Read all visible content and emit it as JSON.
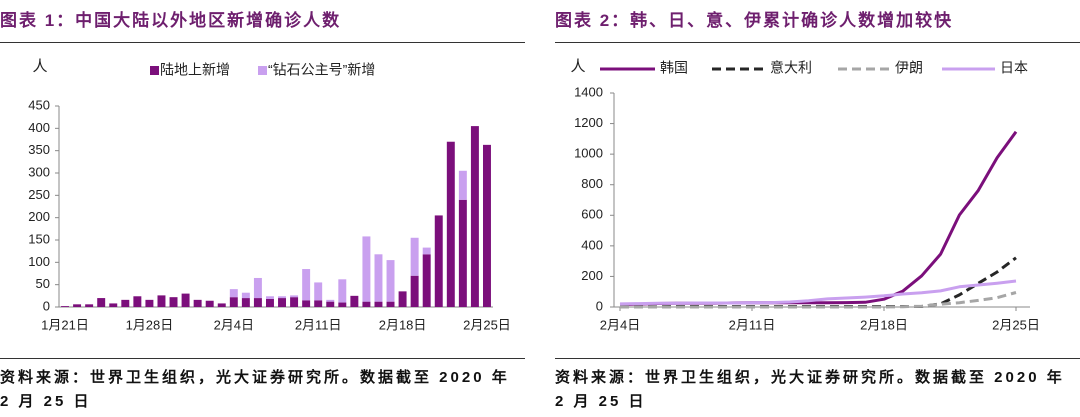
{
  "chart_data": [
    {
      "type": "bar",
      "stacked": true,
      "title": "图表 1：中国大陆以外地区新增确诊人数",
      "y_label": "人",
      "source": "资料来源：世界卫生组织，光大证券研究所。数据截至 2020 年 2 月 25 日",
      "categories": [
        "1月21日",
        null,
        null,
        null,
        null,
        null,
        null,
        "1月28日",
        null,
        null,
        null,
        null,
        null,
        null,
        "2月4日",
        null,
        null,
        null,
        null,
        null,
        null,
        "2月11日",
        null,
        null,
        null,
        null,
        null,
        null,
        "2月18日",
        null,
        null,
        null,
        null,
        null,
        null,
        "2月25日"
      ],
      "series": [
        {
          "name": "陆地上新增",
          "color": "#7b0f7b",
          "values": [
            2,
            6,
            6,
            20,
            8,
            16,
            24,
            16,
            26,
            22,
            30,
            16,
            14,
            8,
            22,
            20,
            20,
            18,
            20,
            22,
            15,
            15,
            12,
            10,
            25,
            12,
            12,
            12,
            35,
            70,
            118,
            205,
            370,
            240,
            405,
            363
          ]
        },
        {
          "name": "“钻石公主号”新增",
          "color": "#c9a0ef",
          "values": [
            0,
            0,
            0,
            0,
            0,
            0,
            0,
            0,
            0,
            0,
            0,
            0,
            0,
            0,
            18,
            12,
            45,
            6,
            4,
            4,
            70,
            40,
            4,
            52,
            0,
            146,
            106,
            93,
            0,
            85,
            15,
            0,
            0,
            65,
            0,
            0
          ]
        }
      ],
      "ylim": [
        0,
        450
      ],
      "yticks": [
        0,
        50,
        100,
        150,
        200,
        250,
        300,
        350,
        400,
        450
      ]
    },
    {
      "type": "line",
      "title": "图表 2：韩、日、意、伊累计确诊人数增加较快",
      "y_label": "人",
      "source": "资料来源：世界卫生组织，光大证券研究所。数据截至 2020 年 2 月 25 日",
      "categories": [
        "2月4日",
        null,
        null,
        null,
        null,
        null,
        null,
        "2月11日",
        null,
        null,
        null,
        null,
        null,
        null,
        "2月18日",
        null,
        null,
        null,
        null,
        null,
        null,
        "2月25日"
      ],
      "series": [
        {
          "name": "韩国",
          "color": "#7b0f7b",
          "dashed": false,
          "values": [
            16,
            19,
            23,
            24,
            24,
            25,
            27,
            28,
            28,
            28,
            28,
            28,
            29,
            31,
            51,
            104,
            204,
            346,
            602,
            763,
            977,
            1146
          ]
        },
        {
          "name": "意大利",
          "color": "#262626",
          "dashed": true,
          "values": [
            2,
            2,
            2,
            3,
            3,
            3,
            3,
            3,
            3,
            3,
            3,
            3,
            3,
            3,
            3,
            3,
            3,
            20,
            79,
            155,
            229,
            322
          ]
        },
        {
          "name": "伊朗",
          "color": "#a6a6a6",
          "dashed": true,
          "values": [
            0,
            0,
            0,
            0,
            0,
            0,
            0,
            0,
            0,
            0,
            0,
            0,
            0,
            0,
            0,
            2,
            5,
            18,
            28,
            43,
            61,
            95
          ]
        },
        {
          "name": "日本",
          "color": "#c9a0ef",
          "dashed": false,
          "values": [
            20,
            22,
            25,
            25,
            26,
            26,
            26,
            28,
            29,
            33,
            41,
            53,
            59,
            65,
            73,
            85,
            93,
            105,
            132,
            144,
            156,
            170
          ]
        }
      ],
      "ylim": [
        0,
        1400
      ],
      "yticks": [
        0,
        200,
        400,
        600,
        800,
        1000,
        1200,
        1400
      ]
    }
  ]
}
